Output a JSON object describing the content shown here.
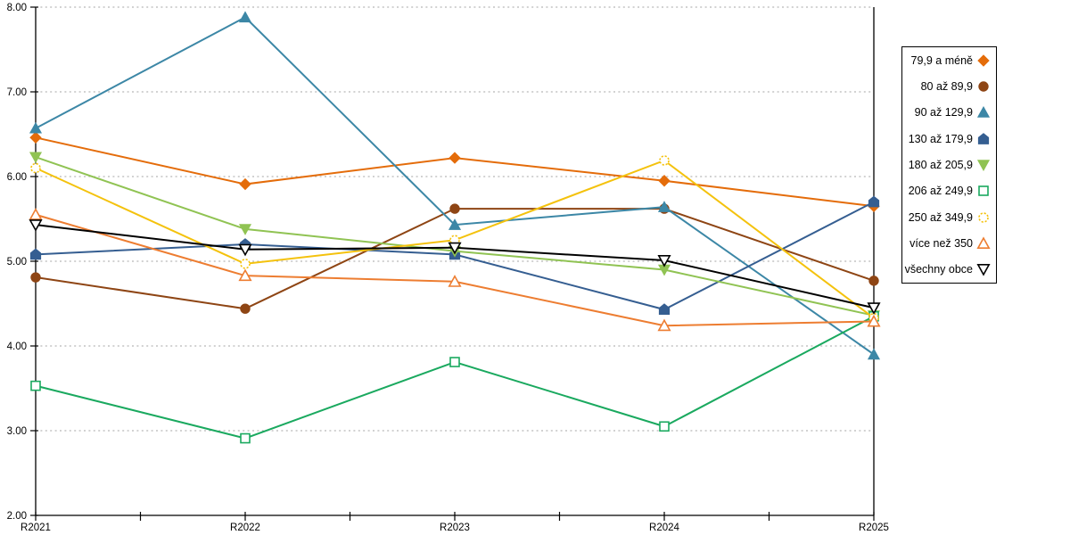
{
  "chart_data": {
    "type": "line",
    "title": "",
    "xlabel": "",
    "ylabel": "",
    "categories": [
      "R2021",
      "R2022",
      "R2023",
      "R2024",
      "R2025"
    ],
    "series": [
      {
        "name": "79,9 a méně",
        "color": "#E46C0A",
        "marker": "diamond",
        "fill": "solid",
        "values": [
          6.46,
          5.91,
          6.22,
          5.95,
          5.65
        ]
      },
      {
        "name": "80 až 89,9",
        "color": "#8E4514",
        "marker": "circle",
        "fill": "solid",
        "values": [
          4.81,
          4.44,
          5.62,
          5.62,
          4.77
        ]
      },
      {
        "name": "90 až 129,9",
        "color": "#3C87A6",
        "marker": "triangle-up",
        "fill": "solid",
        "values": [
          6.57,
          7.88,
          5.43,
          5.64,
          3.9
        ]
      },
      {
        "name": "130 až 179,9",
        "color": "#355E91",
        "marker": "pentagon",
        "fill": "solid",
        "values": [
          5.08,
          5.2,
          5.08,
          4.43,
          5.7
        ]
      },
      {
        "name": "180 až 205,9",
        "color": "#90C353",
        "marker": "triangle-down",
        "fill": "solid",
        "values": [
          6.23,
          5.38,
          5.12,
          4.9,
          4.36
        ]
      },
      {
        "name": "206 až 249,9",
        "color": "#1AA95F",
        "marker": "square",
        "fill": "hollow",
        "values": [
          3.53,
          2.91,
          3.81,
          3.05,
          4.35
        ]
      },
      {
        "name": "250 až 349,9",
        "color": "#F4C20D",
        "marker": "circle-dashed",
        "fill": "hollow",
        "values": [
          6.1,
          4.97,
          5.25,
          6.19,
          4.33
        ]
      },
      {
        "name": "více než 350",
        "color": "#ED7D31",
        "marker": "triangle-up",
        "fill": "hollow",
        "values": [
          5.55,
          4.83,
          4.76,
          4.24,
          4.29
        ]
      },
      {
        "name": "všechny obce",
        "color": "#000000",
        "marker": "triangle-down",
        "fill": "hollow",
        "values": [
          5.43,
          5.14,
          5.16,
          5.01,
          4.45
        ]
      }
    ],
    "ylim": [
      2,
      8
    ],
    "ytick_step": 1,
    "ytick_labels": [
      "2.00",
      "3.00",
      "4.00",
      "5.00",
      "6.00",
      "7.00",
      "8.00"
    ],
    "grid": "horizontal-dotted",
    "gridline_color": "#A6A6A6",
    "axis_color": "#000000",
    "legend_position": "right"
  }
}
